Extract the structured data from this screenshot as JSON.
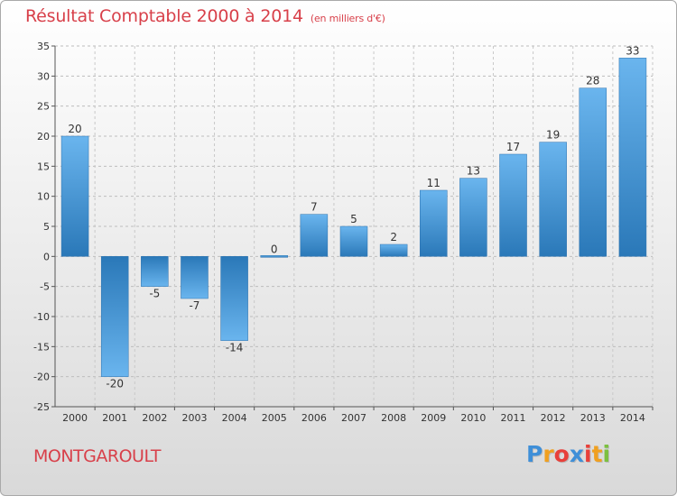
{
  "title": "Résultat Comptable 2000 à 2014",
  "subtitle": "(en milliers d'€)",
  "place": "MONTGAROULT",
  "logo": {
    "letters": [
      "P",
      "r",
      "o",
      "x",
      "i",
      "t",
      "i"
    ],
    "colors": [
      "#3f8fd8",
      "#f0a020",
      "#e8403a",
      "#3f8fd8",
      "#e8403a",
      "#f0a020",
      "#7cc040"
    ]
  },
  "colors": {
    "accent": "#d8404a",
    "bar_dark": "#2f7fc0",
    "bar_light": "#6ab5ee"
  },
  "chart_data": {
    "type": "bar",
    "title": "Résultat Comptable 2000 à 2014",
    "subtitle": "(en milliers d'€)",
    "categories": [
      "2000",
      "2001",
      "2002",
      "2003",
      "2004",
      "2005",
      "2006",
      "2007",
      "2008",
      "2009",
      "2010",
      "2011",
      "2012",
      "2013",
      "2014"
    ],
    "values": [
      20,
      -20,
      -5,
      -7,
      -14,
      0,
      7,
      5,
      2,
      11,
      13,
      17,
      19,
      28,
      33
    ],
    "ylim": [
      -25,
      35
    ],
    "yticks": [
      -25,
      -20,
      -15,
      -10,
      -5,
      0,
      5,
      10,
      15,
      20,
      25,
      30,
      35
    ],
    "grid": true
  }
}
